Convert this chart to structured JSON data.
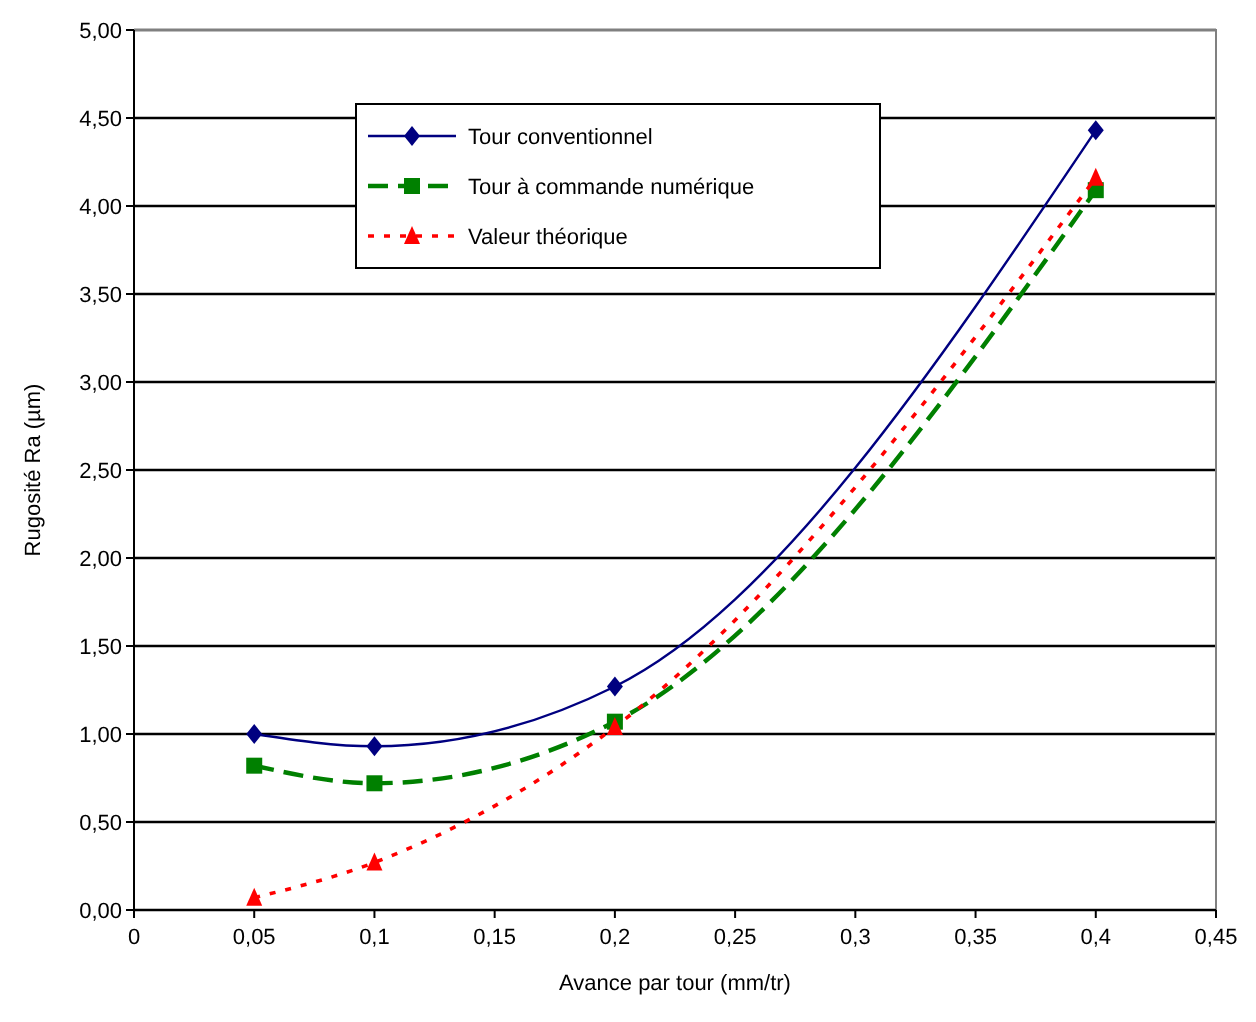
{
  "chart_data": {
    "type": "line",
    "xlabel": "Avance par tour (mm/tr)",
    "ylabel": "Rugosité Ra  (µm)",
    "xlim": [
      0,
      0.45
    ],
    "ylim": [
      0,
      5
    ],
    "xticks": [
      0,
      {
        "value": 0.05,
        "label": "0,05"
      },
      {
        "value": 0.1,
        "label": "0,1"
      },
      {
        "value": 0.15,
        "label": "0,15"
      },
      {
        "value": 0.2,
        "label": "0,2"
      },
      {
        "value": 0.25,
        "label": "0,25"
      },
      {
        "value": 0.3,
        "label": "0,3"
      },
      {
        "value": 0.35,
        "label": "0,35"
      },
      {
        "value": 0.4,
        "label": "0,4"
      },
      {
        "value": 0.45,
        "label": "0,45"
      }
    ],
    "yticks": [
      {
        "value": 0,
        "label": "0,00"
      },
      {
        "value": 0.5,
        "label": "0,50"
      },
      {
        "value": 1,
        "label": "1,00"
      },
      {
        "value": 1.5,
        "label": "1,50"
      },
      {
        "value": 2,
        "label": "2,00"
      },
      {
        "value": 2.5,
        "label": "2,50"
      },
      {
        "value": 3,
        "label": "3,00"
      },
      {
        "value": 3.5,
        "label": "3,50"
      },
      {
        "value": 4,
        "label": "4,00"
      },
      {
        "value": 4.5,
        "label": "4,50"
      },
      {
        "value": 5,
        "label": "5,00"
      }
    ],
    "x": [
      0.05,
      0.1,
      0.2,
      0.4
    ],
    "grid": "y",
    "legend": "top",
    "series": [
      {
        "name": "Tour conventionnel",
        "color": "#000080",
        "marker": "diamond",
        "line_style": "solid",
        "values": [
          1.0,
          0.93,
          1.27,
          4.43
        ]
      },
      {
        "name": "Tour à commande numérique",
        "color": "#008000",
        "marker": "square",
        "line_style": "dashed",
        "values": [
          0.82,
          0.72,
          1.07,
          4.09
        ]
      },
      {
        "name": "Valeur théorique",
        "color": "#ff0000",
        "marker": "triangle",
        "line_style": "dotted",
        "values": [
          0.07,
          0.27,
          1.04,
          4.16
        ]
      }
    ]
  }
}
